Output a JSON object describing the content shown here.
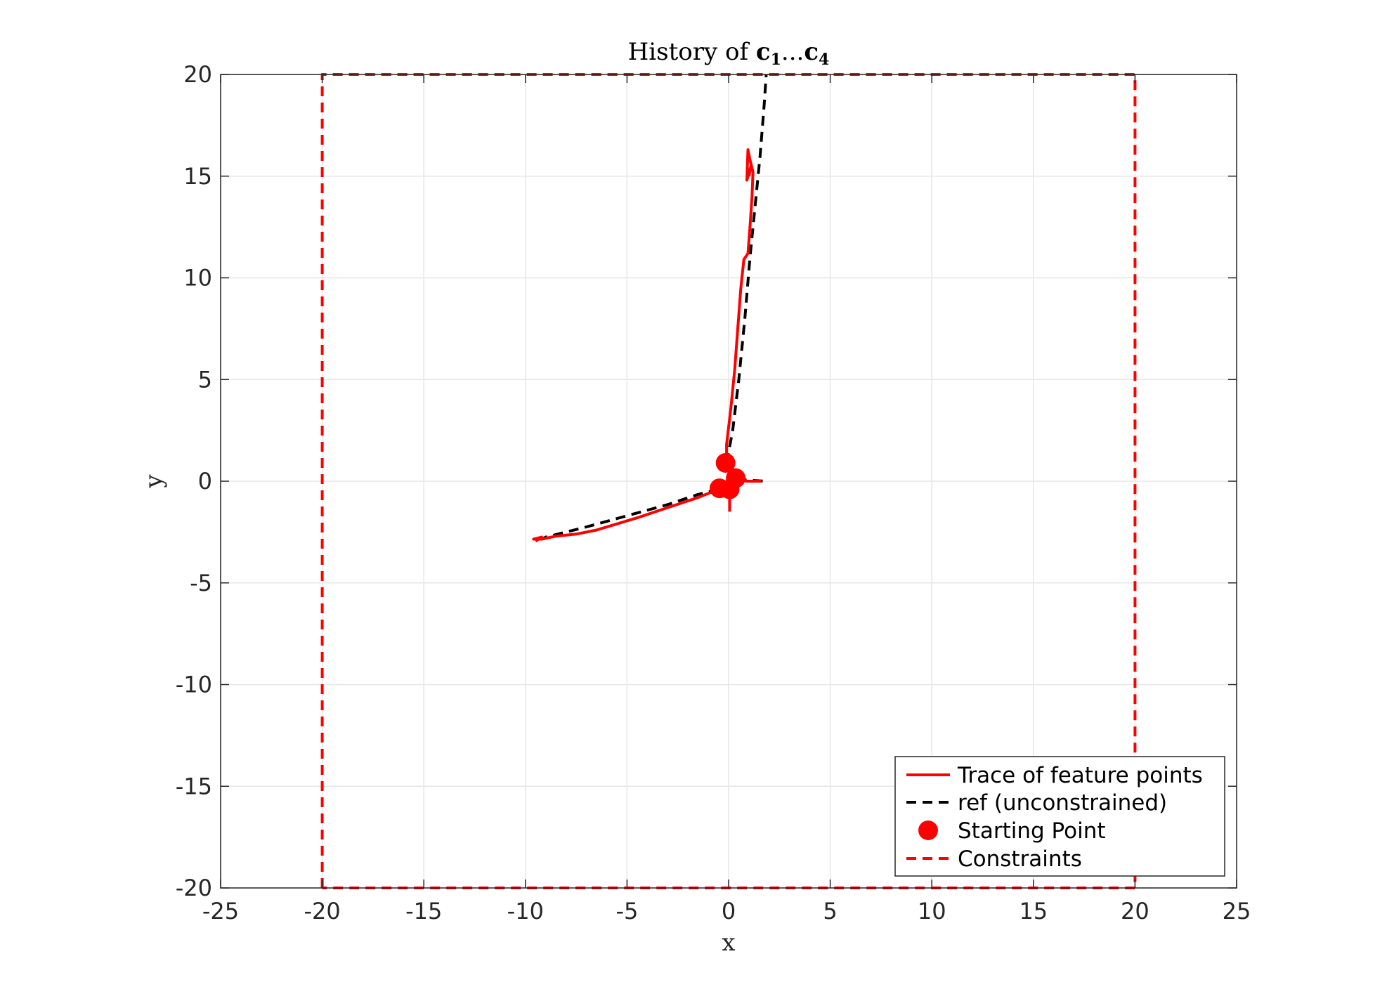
{
  "chart_data": {
    "type": "line",
    "title": "History of c1...c4",
    "title_parts": {
      "prefix": "History of ",
      "c": "c",
      "sub1": "1",
      "dots": "...",
      "sub4": "4"
    },
    "xlabel": "x",
    "ylabel": "y",
    "xlim": [
      -25,
      25
    ],
    "ylim": [
      -20,
      20
    ],
    "xticks": [
      -25,
      -20,
      -15,
      -10,
      -5,
      0,
      5,
      10,
      15,
      20,
      25
    ],
    "yticks": [
      -20,
      -15,
      -10,
      -5,
      0,
      5,
      10,
      15,
      20
    ],
    "grid": true,
    "legend_position": "bottom-right",
    "colors": {
      "trace": "#ff0000",
      "ref": "#000000",
      "start": "#ff0000",
      "constraint": "#ff0000"
    },
    "series": [
      {
        "name": "Trace of feature points",
        "style": "solid",
        "paths": [
          [
            [
              -0.1,
              0.9
            ],
            [
              -0.1,
              1.8
            ],
            [
              0.1,
              3.5
            ],
            [
              0.3,
              5.5
            ],
            [
              0.45,
              7.5
            ],
            [
              0.6,
              9.5
            ],
            [
              0.75,
              10.9
            ],
            [
              0.95,
              11.2
            ],
            [
              1.05,
              12.5
            ],
            [
              1.15,
              14.0
            ],
            [
              1.2,
              15.2
            ],
            [
              1.05,
              15.8
            ],
            [
              0.95,
              16.3
            ],
            [
              0.9,
              14.8
            ],
            [
              1.1,
              15.5
            ],
            [
              1.0,
              15.0
            ]
          ],
          [
            [
              -0.5,
              -0.4
            ],
            [
              -1.5,
              -0.8
            ],
            [
              -3.0,
              -1.3
            ],
            [
              -4.5,
              -1.8
            ],
            [
              -5.5,
              -2.1
            ],
            [
              -6.5,
              -2.4
            ],
            [
              -7.5,
              -2.6
            ],
            [
              -8.5,
              -2.7
            ],
            [
              -9.2,
              -2.85
            ],
            [
              -9.6,
              -2.85
            ],
            [
              -9.2,
              -2.75
            ],
            [
              -9.5,
              -2.95
            ]
          ],
          [
            [
              0.4,
              0.1
            ],
            [
              0.9,
              0.0
            ],
            [
              1.6,
              0.0
            ]
          ],
          [
            [
              0.05,
              -0.4
            ],
            [
              0.05,
              -1.5
            ]
          ]
        ]
      },
      {
        "name": "ref (unconstrained)",
        "style": "dashed",
        "paths": [
          [
            [
              -0.1,
              0.9
            ],
            [
              0.2,
              2.5
            ],
            [
              0.5,
              5.0
            ],
            [
              0.8,
              8.0
            ],
            [
              1.05,
              11.0
            ],
            [
              1.3,
              13.5
            ],
            [
              1.55,
              16.0
            ],
            [
              1.75,
              18.5
            ],
            [
              1.85,
              20.0
            ]
          ],
          [
            [
              -0.5,
              -0.4
            ],
            [
              -1.5,
              -0.65
            ],
            [
              -3.0,
              -1.15
            ],
            [
              -5.0,
              -1.7
            ],
            [
              -7.0,
              -2.25
            ],
            [
              -9.0,
              -2.75
            ],
            [
              -9.2,
              -2.85
            ]
          ],
          [
            [
              0.4,
              0.1
            ],
            [
              1.0,
              0.05
            ],
            [
              1.8,
              0.0
            ]
          ]
        ]
      },
      {
        "name": "Starting Point",
        "style": "marker",
        "points": [
          [
            -0.15,
            0.9
          ],
          [
            -0.45,
            -0.35
          ],
          [
            0.05,
            -0.4
          ],
          [
            0.35,
            0.15
          ]
        ]
      },
      {
        "name": "Constraints",
        "style": "dashed",
        "paths": [
          [
            [
              -20,
              -20
            ],
            [
              -20,
              20
            ],
            [
              20,
              20
            ],
            [
              20,
              -20
            ],
            [
              -20,
              -20
            ]
          ]
        ]
      }
    ]
  }
}
